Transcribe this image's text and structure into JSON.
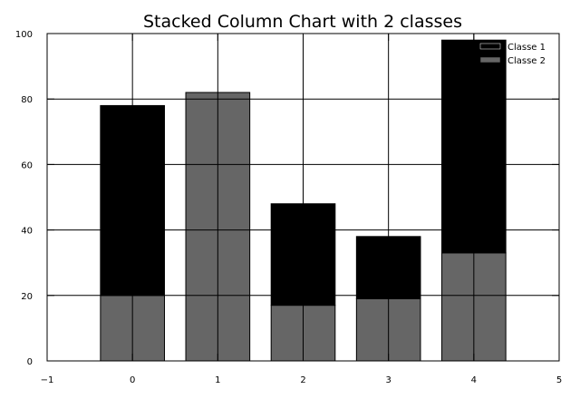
{
  "chart_data": {
    "type": "bar",
    "stacked": true,
    "title": "Stacked Column Chart with 2 classes",
    "xlabel": "",
    "ylabel": "",
    "categories": [
      0,
      1,
      2,
      3,
      4
    ],
    "series": [
      {
        "name": "Classe 1",
        "values": [
          58,
          0,
          31,
          19,
          65
        ],
        "color": "#000000"
      },
      {
        "name": "Classe 2",
        "values": [
          20,
          82,
          17,
          19,
          33
        ],
        "color": "#666666"
      }
    ],
    "stack_order": [
      "Classe 2",
      "Classe 1"
    ],
    "xlim": [
      -1,
      5
    ],
    "ylim": [
      0,
      100
    ],
    "xticks": [
      -1,
      0,
      1,
      2,
      3,
      4,
      5
    ],
    "yticks": [
      0,
      20,
      40,
      60,
      80,
      100
    ],
    "grid": true,
    "legend_position": "top-right"
  }
}
